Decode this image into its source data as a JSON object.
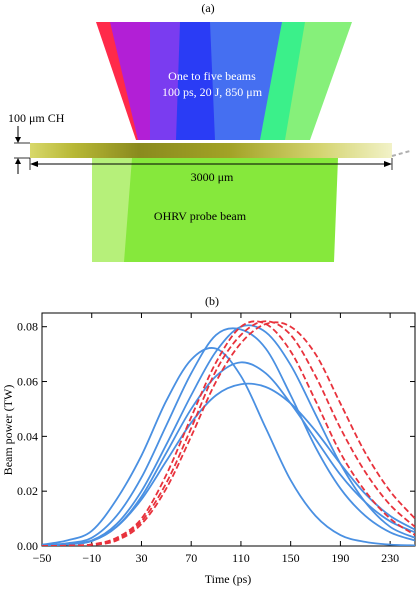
{
  "panel_a": {
    "label": "(a)",
    "beam_label_line1": "One to five beams",
    "beam_label_line2": "100 ps, 20 J, 850 μm",
    "target_label": "100 μm CH",
    "width_label": "3000 μm",
    "probe_label": "OHRV probe beam",
    "colors": {
      "beam_red": "#ff2a4a",
      "beam_magenta": "#b21fd6",
      "beam_purple": "#7a3cf0",
      "beam_blue": "#2a3cf5",
      "beam_blue2": "#4a78f0",
      "beam_green": "#3bf08a",
      "beam_lime": "#86f07a",
      "target_dark": "#8a8a1e",
      "target_light": "#f2f2c8",
      "probe_green": "#86e83c",
      "probe_light": "#b6f07a"
    }
  },
  "panel_b": {
    "label": "(b)"
  },
  "chart_data": {
    "type": "line",
    "xlabel": "Time (ps)",
    "ylabel": "Beam power (TW)",
    "xlim": [
      -50,
      250
    ],
    "ylim": [
      0,
      0.085
    ],
    "xticks": [
      -50,
      -10,
      30,
      70,
      110,
      150,
      190,
      230
    ],
    "yticks": [
      0,
      0.02,
      0.04,
      0.06,
      0.08
    ],
    "ytick_labels": [
      "0.00",
      "0.02",
      "0.04",
      "0.06",
      "0.08"
    ],
    "grid": false,
    "solid_color": "#4a90e2",
    "dashed_color": "#e8323c",
    "series": [
      {
        "style": "solid",
        "x": [
          -50,
          -30,
          -10,
          10,
          30,
          50,
          70,
          90,
          110,
          130,
          150,
          170,
          190,
          210,
          230,
          250
        ],
        "y": [
          0.0005,
          0.002,
          0.0055,
          0.017,
          0.033,
          0.053,
          0.068,
          0.072,
          0.062,
          0.043,
          0.024,
          0.011,
          0.004,
          0.0015,
          0.0005,
          0.0002
        ]
      },
      {
        "style": "solid",
        "x": [
          -50,
          -30,
          -10,
          10,
          30,
          50,
          70,
          90,
          110,
          130,
          150,
          170,
          190,
          210,
          230,
          250
        ],
        "y": [
          0.0002,
          0.001,
          0.003,
          0.011,
          0.025,
          0.044,
          0.063,
          0.077,
          0.079,
          0.072,
          0.055,
          0.036,
          0.021,
          0.011,
          0.005,
          0.002
        ]
      },
      {
        "style": "solid",
        "x": [
          -50,
          -30,
          -10,
          10,
          30,
          50,
          70,
          90,
          110,
          130,
          150,
          170,
          190,
          210,
          230,
          250
        ],
        "y": [
          0.0001,
          0.0007,
          0.002,
          0.008,
          0.02,
          0.037,
          0.055,
          0.071,
          0.08,
          0.078,
          0.066,
          0.048,
          0.03,
          0.016,
          0.007,
          0.003
        ]
      },
      {
        "style": "solid",
        "x": [
          -50,
          -30,
          -10,
          10,
          30,
          50,
          70,
          90,
          110,
          130,
          150,
          170,
          190,
          210,
          230,
          250
        ],
        "y": [
          0.0001,
          0.0006,
          0.0018,
          0.007,
          0.018,
          0.034,
          0.05,
          0.062,
          0.067,
          0.063,
          0.052,
          0.039,
          0.026,
          0.016,
          0.009,
          0.005
        ]
      },
      {
        "style": "solid",
        "x": [
          -50,
          -30,
          -10,
          10,
          30,
          50,
          70,
          90,
          110,
          130,
          150,
          170,
          190,
          210,
          230,
          250
        ],
        "y": [
          0.0001,
          0.0006,
          0.0018,
          0.007,
          0.017,
          0.031,
          0.045,
          0.055,
          0.059,
          0.058,
          0.052,
          0.042,
          0.03,
          0.019,
          0.011,
          0.006
        ]
      },
      {
        "style": "dashed",
        "x": [
          -50,
          -30,
          -10,
          10,
          30,
          50,
          70,
          90,
          110,
          130,
          150,
          170,
          190,
          210,
          230,
          250
        ],
        "y": [
          0,
          0.0001,
          0.0006,
          0.003,
          0.01,
          0.026,
          0.047,
          0.067,
          0.08,
          0.081,
          0.071,
          0.053,
          0.034,
          0.02,
          0.01,
          0.004
        ]
      },
      {
        "style": "dashed",
        "x": [
          -50,
          -30,
          -10,
          10,
          30,
          50,
          70,
          90,
          110,
          130,
          150,
          170,
          190,
          210,
          230,
          250
        ],
        "y": [
          0,
          0.0001,
          0.0005,
          0.0025,
          0.009,
          0.023,
          0.043,
          0.064,
          0.077,
          0.082,
          0.077,
          0.062,
          0.043,
          0.027,
          0.015,
          0.007
        ]
      },
      {
        "style": "dashed",
        "x": [
          -50,
          -30,
          -10,
          10,
          30,
          50,
          70,
          90,
          110,
          130,
          150,
          170,
          190,
          210,
          230,
          250
        ],
        "y": [
          0,
          5e-05,
          0.0004,
          0.002,
          0.008,
          0.021,
          0.04,
          0.06,
          0.074,
          0.081,
          0.08,
          0.07,
          0.052,
          0.034,
          0.02,
          0.01
        ]
      }
    ]
  }
}
